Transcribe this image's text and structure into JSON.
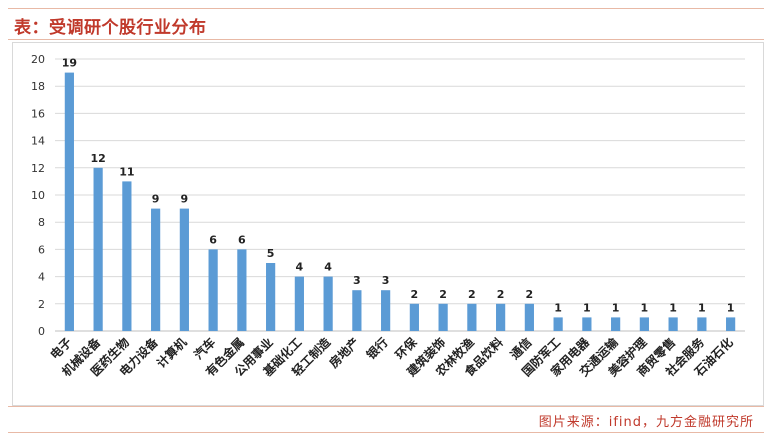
{
  "header": {
    "title": "表：受调研个股行业分布"
  },
  "footer": {
    "source": "图片来源：ifind，九方金融研究所"
  },
  "colors": {
    "bar": "#5b9bd5",
    "accent": "#c0392b",
    "grid": "#d9d9d9"
  },
  "chart_data": {
    "type": "bar",
    "title": "",
    "xlabel": "",
    "ylabel": "",
    "ylim": [
      0,
      20
    ],
    "yticks": [
      0,
      2,
      4,
      6,
      8,
      10,
      12,
      14,
      16,
      18,
      20
    ],
    "grid": true,
    "data_labels": true,
    "categories": [
      "电子",
      "机械设备",
      "医药生物",
      "电力设备",
      "计算机",
      "汽车",
      "有色金属",
      "公用事业",
      "基础化工",
      "轻工制造",
      "房地产",
      "银行",
      "环保",
      "建筑装饰",
      "农林牧渔",
      "食品饮料",
      "通信",
      "国防军工",
      "家用电器",
      "交通运输",
      "美容护理",
      "商贸零售",
      "社会服务",
      "石油石化"
    ],
    "values": [
      19,
      12,
      11,
      9,
      9,
      6,
      6,
      5,
      4,
      4,
      3,
      3,
      2,
      2,
      2,
      2,
      2,
      1,
      1,
      1,
      1,
      1,
      1,
      1
    ]
  }
}
